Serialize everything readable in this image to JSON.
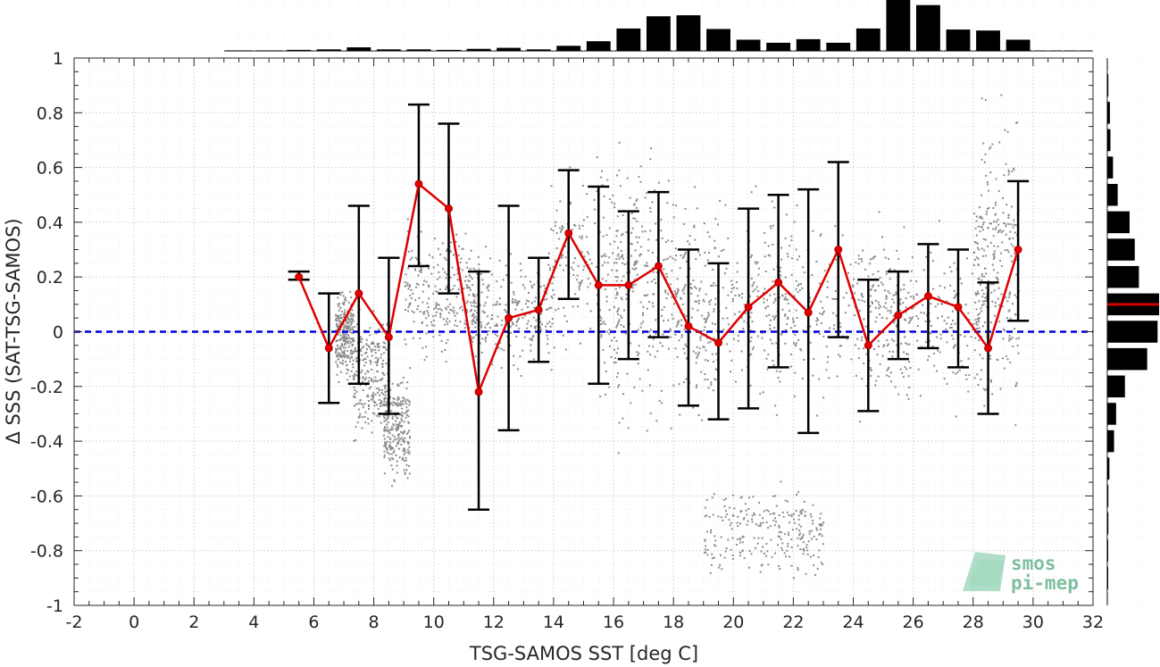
{
  "chart_data": {
    "type": "scatter",
    "xlabel": "TSG-SAMOS SST [deg C]",
    "ylabel": "Δ SSS (SAT-TSG-SAMOS)",
    "xlim": [
      -2,
      32
    ],
    "ylim": [
      -1,
      1
    ],
    "xticks": [
      -2,
      0,
      2,
      4,
      6,
      8,
      10,
      12,
      14,
      16,
      18,
      20,
      22,
      24,
      26,
      28,
      30,
      32
    ],
    "yticks": [
      -1,
      -0.8,
      -0.6,
      -0.4,
      -0.2,
      0,
      0.2,
      0.4,
      0.6,
      0.8,
      1
    ],
    "xtick_labels": [
      "-2",
      "0",
      "2",
      "4",
      "6",
      "8",
      "10",
      "12",
      "14",
      "16",
      "18",
      "20",
      "22",
      "24",
      "26",
      "28",
      "30",
      "32"
    ],
    "ytick_labels": [
      "-1",
      "-0.8",
      "-0.6",
      "-0.4",
      "-0.2",
      "0",
      "0.2",
      "0.4",
      "0.6",
      "0.8",
      "1"
    ],
    "grid": true,
    "reference_line": {
      "y": 0,
      "color": "#0000dd",
      "style": "dashed"
    },
    "colors": {
      "scatter": "#8c8c8c",
      "mean_line": "#e00000",
      "error_bars": "#000000",
      "histogram": "#000000",
      "median_marker": "#d00000"
    },
    "binned_mean": {
      "x": [
        5.5,
        6.5,
        7.5,
        8.5,
        9.5,
        10.5,
        11.5,
        12.5,
        13.5,
        14.5,
        15.5,
        16.5,
        17.5,
        18.5,
        19.5,
        20.5,
        21.5,
        22.5,
        23.5,
        24.5,
        25.5,
        26.5,
        27.5,
        28.5,
        29.5
      ],
      "mean": [
        0.2,
        -0.06,
        0.14,
        -0.02,
        0.54,
        0.45,
        -0.22,
        0.05,
        0.08,
        0.36,
        0.17,
        0.17,
        0.24,
        0.02,
        -0.04,
        0.09,
        0.18,
        0.07,
        0.3,
        -0.05,
        0.06,
        0.13,
        0.09,
        -0.06,
        0.3
      ],
      "err_low": [
        0.19,
        -0.26,
        -0.19,
        -0.3,
        0.24,
        0.14,
        -0.65,
        -0.36,
        -0.11,
        0.12,
        -0.19,
        -0.1,
        -0.02,
        -0.27,
        -0.32,
        -0.28,
        -0.13,
        -0.37,
        -0.02,
        -0.29,
        -0.1,
        -0.06,
        -0.13,
        -0.3,
        0.04
      ],
      "err_high": [
        0.22,
        0.14,
        0.46,
        0.27,
        0.83,
        0.76,
        0.22,
        0.46,
        0.27,
        0.59,
        0.53,
        0.44,
        0.51,
        0.3,
        0.25,
        0.45,
        0.5,
        0.52,
        0.62,
        0.19,
        0.22,
        0.32,
        0.3,
        0.18,
        0.55
      ]
    },
    "top_histogram": {
      "bin_centers": [
        3.5,
        4.5,
        5.5,
        6.5,
        7.5,
        8.5,
        9.5,
        10.5,
        11.5,
        12.5,
        13.5,
        14.5,
        15.5,
        16.5,
        17.5,
        18.5,
        19.5,
        20.5,
        21.5,
        22.5,
        23.5,
        24.5,
        25.5,
        26.5,
        27.5,
        28.5,
        29.5
      ],
      "relative_counts": [
        0.01,
        0.01,
        0.02,
        0.03,
        0.07,
        0.03,
        0.03,
        0.02,
        0.04,
        0.06,
        0.03,
        0.1,
        0.19,
        0.44,
        0.68,
        0.7,
        0.43,
        0.22,
        0.16,
        0.23,
        0.16,
        0.44,
        1.0,
        0.9,
        0.42,
        0.4,
        0.22
      ]
    },
    "right_histogram": {
      "bin_centers": [
        0.9,
        0.8,
        0.7,
        0.6,
        0.5,
        0.4,
        0.3,
        0.2,
        0.1,
        0.0,
        -0.1,
        -0.2,
        -0.3,
        -0.4,
        -0.5,
        -0.6,
        -0.7,
        -0.8,
        -0.9
      ],
      "relative_counts": [
        0.02,
        0.05,
        0.06,
        0.11,
        0.2,
        0.43,
        0.53,
        0.61,
        1.0,
        0.97,
        0.77,
        0.34,
        0.17,
        0.13,
        0.04,
        0.02,
        0.02,
        0.01,
        0.01
      ],
      "median": 0.1
    },
    "scatter_clusters": [
      {
        "x": [
          6.7,
          7.3
        ],
        "y": [
          -0.2,
          0.2
        ]
      },
      {
        "x": [
          7.3,
          8.5
        ],
        "y": [
          -0.45,
          0.15
        ]
      },
      {
        "x": [
          8.3,
          9.2
        ],
        "y": [
          -0.6,
          -0.1
        ]
      },
      {
        "x": [
          9.0,
          11.5
        ],
        "y": [
          -0.15,
          0.45
        ]
      },
      {
        "x": [
          11.0,
          14.0
        ],
        "y": [
          -0.2,
          0.35
        ]
      },
      {
        "x": [
          13.8,
          17.5
        ],
        "y": [
          -0.15,
          0.75
        ]
      },
      {
        "x": [
          15.5,
          19.5
        ],
        "y": [
          -0.5,
          0.55
        ]
      },
      {
        "x": [
          17.5,
          22.0
        ],
        "y": [
          -0.4,
          0.65
        ]
      },
      {
        "x": [
          21.0,
          26.0
        ],
        "y": [
          -0.35,
          0.55
        ]
      },
      {
        "x": [
          24.0,
          28.5
        ],
        "y": [
          -0.35,
          0.45
        ]
      },
      {
        "x": [
          28.0,
          29.5
        ],
        "y": [
          -0.45,
          0.95
        ]
      },
      {
        "x": [
          19.0,
          23.0
        ],
        "y": [
          -0.95,
          -0.5
        ]
      }
    ]
  },
  "logo": {
    "line1": "smos",
    "line2": "pi-mep"
  }
}
